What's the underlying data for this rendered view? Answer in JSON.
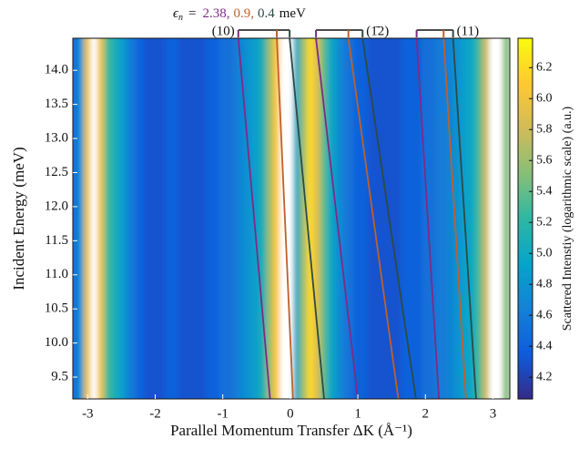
{
  "chart_data": {
    "type": "heatmap",
    "title": {
      "symbol": "ϵ",
      "subscript": "n",
      "equals": "=",
      "values": [
        "2.38,",
        "0.9,",
        "0.4"
      ],
      "unit": "meV"
    },
    "x_label": "Parallel Momentum Transfer ΔK (Å⁻¹)",
    "y_label": "Incident Energy (meV)",
    "colorbar_label": "Scattered Intenstiy (logarithmic scale) (a.u.)",
    "x": [
      -3.2,
      -3.1,
      -3.0,
      -2.9,
      -2.8,
      -2.7,
      -2.6,
      -2.5,
      -2.4,
      -2.3,
      -2.2,
      -2.1,
      -2.0,
      -1.9,
      -1.8,
      -1.7,
      -1.6,
      -1.5,
      -1.4,
      -1.3,
      -1.2,
      -1.1,
      -1.0,
      -0.9,
      -0.8,
      -0.7,
      -0.6,
      -0.5,
      -0.4,
      -0.3,
      -0.2,
      -0.1,
      0.0,
      0.1,
      0.2,
      0.3,
      0.4,
      0.5,
      0.6,
      0.7,
      0.8,
      0.9,
      1.0,
      1.1,
      1.2,
      1.3,
      1.4,
      1.5,
      1.6,
      1.7,
      1.8,
      1.9,
      2.0,
      2.1,
      2.2,
      2.3,
      2.4,
      2.5,
      2.6,
      2.7,
      2.8,
      2.9,
      3.0,
      3.1,
      3.2
    ],
    "values": [
      4.4,
      4.8,
      6.0,
      6.8,
      6.0,
      5.3,
      5.1,
      4.9,
      4.7,
      4.5,
      4.4,
      4.3,
      4.3,
      4.3,
      4.4,
      4.4,
      4.3,
      4.3,
      4.3,
      4.3,
      4.4,
      4.4,
      4.5,
      4.5,
      4.6,
      4.7,
      4.8,
      4.9,
      5.1,
      5.6,
      6.1,
      6.8,
      6.8,
      5.0,
      5.6,
      6.2,
      5.9,
      5.4,
      5.0,
      4.8,
      4.6,
      4.5,
      4.4,
      4.4,
      4.3,
      4.3,
      4.3,
      4.3,
      4.3,
      4.4,
      4.4,
      4.4,
      4.5,
      4.5,
      4.6,
      4.6,
      4.7,
      4.8,
      4.9,
      5.0,
      5.3,
      5.8,
      6.8,
      6.8,
      5.5
    ],
    "xlim": [
      -3.22,
      3.25
    ],
    "ylim": [
      9.18,
      14.47
    ],
    "clim": [
      4.06,
      6.39
    ],
    "xticks": [
      -3,
      -2,
      -1,
      0,
      1,
      2,
      3
    ],
    "yticks": [
      9.5,
      {
        "value": 10,
        "label": "10.0"
      },
      10.5,
      {
        "value": 11,
        "label": "11.0"
      },
      11.5,
      {
        "value": 12,
        "label": "12.0"
      },
      12.5,
      {
        "value": 13,
        "label": "13.0"
      },
      13.5,
      {
        "value": 14,
        "label": "14.0"
      }
    ],
    "cticks": [
      4.2,
      4.4,
      4.6,
      4.8,
      {
        "value": 5,
        "label": "5.0"
      },
      5.2,
      5.4,
      5.6,
      5.8,
      {
        "value": 6,
        "label": "6.0"
      },
      6.2
    ],
    "groups": [
      {
        "label": "(10)",
        "lines": [
          {
            "color": "#7e2b86",
            "x": [
              -0.77,
              -0.3
            ]
          },
          {
            "color": "#c0602c",
            "x": [
              -0.2,
              0.04
            ]
          },
          {
            "color": "#2e4a45",
            "x": [
              -0.01,
              0.5
            ]
          }
        ]
      },
      {
        "label": "(1̄2)",
        "lines": [
          {
            "color": "#7e2b86",
            "x": [
              0.38,
              1.0
            ]
          },
          {
            "color": "#c0602c",
            "x": [
              0.86,
              1.6
            ]
          },
          {
            "color": "#2e4a45",
            "x": [
              1.07,
              1.86
            ]
          }
        ]
      },
      {
        "label": "(11)",
        "lines": [
          {
            "color": "#7e2b86",
            "x": [
              1.87,
              2.2
            ]
          },
          {
            "color": "#c0602c",
            "x": [
              2.27,
              2.6
            ]
          },
          {
            "color": "#2e4a45",
            "x": [
              2.41,
              2.75
            ]
          }
        ]
      }
    ]
  }
}
